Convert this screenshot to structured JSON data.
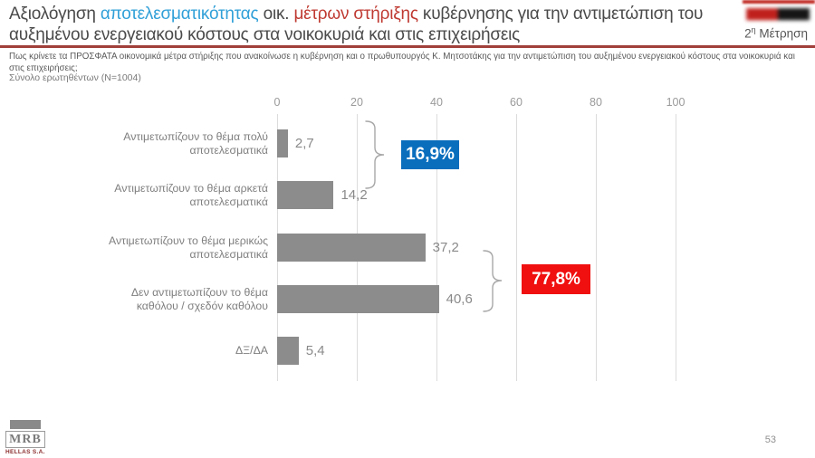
{
  "header": {
    "title_segments": [
      {
        "text": "Αξιολόγηση ",
        "color": "#4a4a4a"
      },
      {
        "text": "αποτελεσματικότητας",
        "color": "#31a0d8"
      },
      {
        "text": " οικ. ",
        "color": "#4a4a4a"
      },
      {
        "text": "μέτρων στήριξης",
        "color": "#bf3a32"
      },
      {
        "text": " κυβέρνησης  για την αντιμετώπιση  του αυξημένου ενεργειακού κόστους  στα νοικοκυριά και στις επιχειρήσεις",
        "color": "#4a4a4a"
      }
    ],
    "press_logo": {
      "red_text": "█████",
      "black_text": "█████"
    },
    "measurement": {
      "number": "2",
      "sup": "η",
      "label": " Μέτρηση"
    }
  },
  "question": {
    "text": "Πως κρίνετε τα ΠΡΟΣΦΑΤΑ  οικονομικά μέτρα στήριξης που ανακοίνωσε η κυβέρνηση και ο πρωθυπουργός Κ. Μητσοτάκης  για την αντιμετώπιση  του αυξημένου  ενεργειακού κόστους  στα νοικοκυριά και στις επιχειρήσεις;"
  },
  "sample_label": "Σύνολο ερωτηθέντων (Ν=1004)",
  "chart_data": {
    "type": "bar",
    "orientation": "horizontal",
    "title": "",
    "categories": [
      "Αντιμετωπίζουν το θέμα πολύ αποτελεσματικά",
      "Αντιμετωπίζουν το θέμα αρκετά αποτελεσματικά",
      "Αντιμετωπίζουν το θέμα μερικώς αποτελεσματικά",
      "Δεν αντιμετωπίζουν το θέμα καθόλου / σχεδόν καθόλου",
      "ΔΞ/ΔΑ"
    ],
    "values": [
      2.7,
      14.2,
      37.2,
      40.6,
      5.4
    ],
    "value_labels": [
      "2,7",
      "14,2",
      "37,2",
      "40,6",
      "5,4"
    ],
    "xlim": [
      0,
      100
    ],
    "xticks": [
      0,
      20,
      40,
      60,
      80,
      100
    ],
    "grid": true,
    "legend": "none",
    "bar_color": "#8c8c8c",
    "groups": [
      {
        "label": "16,9%",
        "color": "#0a6ebd",
        "bars": [
          0,
          1
        ]
      },
      {
        "label": "77,8%",
        "color": "#f01010",
        "bars": [
          2,
          3
        ]
      }
    ]
  },
  "footer": {
    "logo_main": "MRB",
    "logo_sub": "HELLAS S.A.",
    "page_number": "53"
  }
}
